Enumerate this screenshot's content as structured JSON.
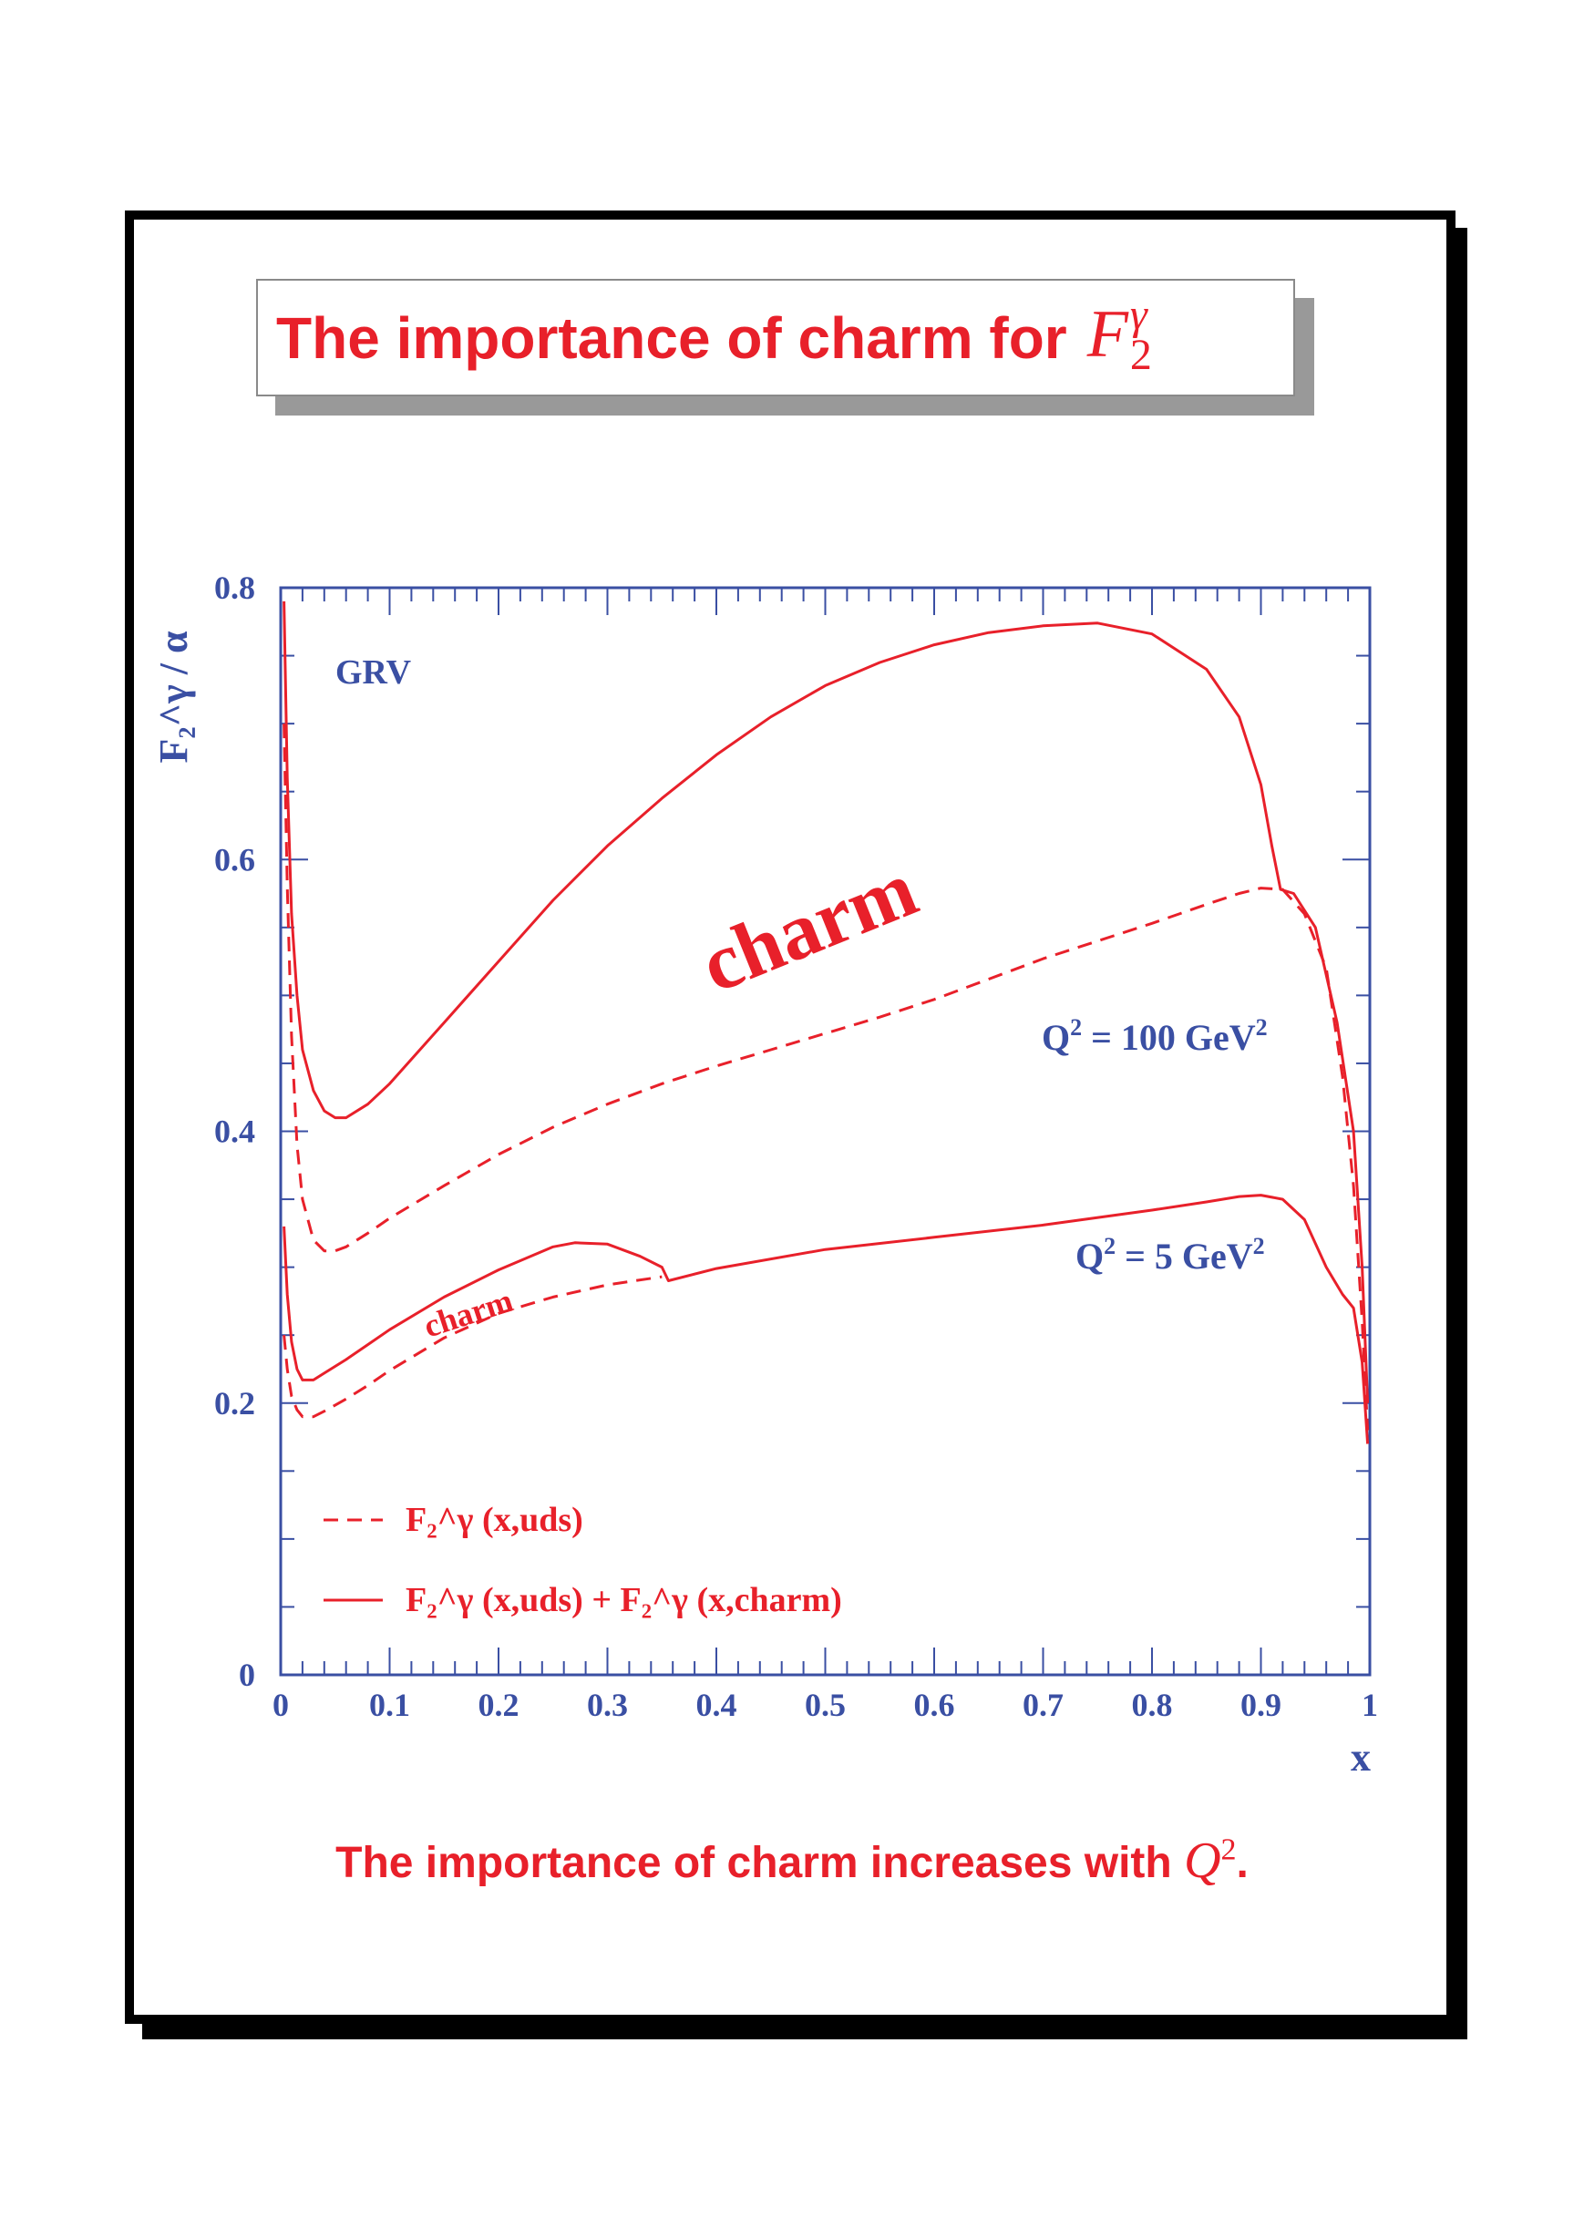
{
  "title": {
    "text": "The importance of charm for",
    "symbol": "F",
    "symbol_sup": "γ",
    "symbol_sub": "2"
  },
  "caption": {
    "text": "The importance of charm increases with",
    "symbol": "Q",
    "symbol_sup": "2",
    "end": "."
  },
  "colors": {
    "curve": "#e8202a",
    "axis": "#3a4fa3",
    "text_blue": "#3a4fa3",
    "frame": "#000000",
    "title_shadow": "#999999"
  },
  "chart_data": {
    "type": "line",
    "xlabel": "x",
    "ylabel": "F₂^γ / α",
    "xlim": [
      0,
      1
    ],
    "ylim": [
      0,
      0.8
    ],
    "xticks": [
      "0",
      "0.1",
      "0.2",
      "0.3",
      "0.4",
      "0.5",
      "0.6",
      "0.7",
      "0.8",
      "0.9",
      "1"
    ],
    "yticks": [
      "0",
      "0.2",
      "0.4",
      "0.6",
      "0.8"
    ],
    "grid": false,
    "annotations": {
      "model": "GRV",
      "charm_large": "charm",
      "charm_small": "charm",
      "q100": {
        "prefix": "Q",
        "sup": "2",
        "mid": " = 100 GeV",
        "sup2": "2"
      },
      "q5": {
        "prefix": "Q",
        "sup": "2",
        "mid": " = 5 GeV",
        "sup2": "2"
      }
    },
    "legend": {
      "placement": "bottom-left",
      "entries": [
        {
          "style": "dashed",
          "label": "F₂^γ (x,uds)"
        },
        {
          "style": "solid",
          "label": "F₂^γ (x,uds) + F₂^γ (x,charm)"
        }
      ]
    },
    "series": [
      {
        "style": "solid",
        "points": [
          [
            0.003,
            0.79
          ],
          [
            0.006,
            0.66
          ],
          [
            0.01,
            0.56
          ],
          [
            0.015,
            0.5
          ],
          [
            0.02,
            0.46
          ],
          [
            0.03,
            0.43
          ],
          [
            0.04,
            0.415
          ],
          [
            0.05,
            0.41
          ],
          [
            0.06,
            0.41
          ],
          [
            0.08,
            0.42
          ],
          [
            0.1,
            0.435
          ],
          [
            0.15,
            0.48
          ],
          [
            0.2,
            0.525
          ],
          [
            0.25,
            0.57
          ],
          [
            0.3,
            0.61
          ],
          [
            0.35,
            0.645
          ],
          [
            0.4,
            0.677
          ],
          [
            0.45,
            0.705
          ],
          [
            0.5,
            0.728
          ],
          [
            0.55,
            0.745
          ],
          [
            0.6,
            0.758
          ],
          [
            0.65,
            0.767
          ],
          [
            0.7,
            0.772
          ],
          [
            0.75,
            0.774
          ],
          [
            0.8,
            0.766
          ],
          [
            0.85,
            0.74
          ],
          [
            0.88,
            0.705
          ],
          [
            0.9,
            0.655
          ],
          [
            0.91,
            0.61
          ],
          [
            0.918,
            0.578
          ],
          [
            0.93,
            0.575
          ],
          [
            0.95,
            0.55
          ],
          [
            0.97,
            0.48
          ],
          [
            0.985,
            0.4
          ],
          [
            0.993,
            0.3
          ],
          [
            0.998,
            0.2
          ]
        ]
      },
      {
        "style": "dashed",
        "points": [
          [
            0.003,
            0.7
          ],
          [
            0.006,
            0.58
          ],
          [
            0.01,
            0.47
          ],
          [
            0.015,
            0.39
          ],
          [
            0.02,
            0.35
          ],
          [
            0.03,
            0.32
          ],
          [
            0.04,
            0.312
          ],
          [
            0.05,
            0.312
          ],
          [
            0.06,
            0.315
          ],
          [
            0.08,
            0.325
          ],
          [
            0.1,
            0.336
          ],
          [
            0.15,
            0.36
          ],
          [
            0.2,
            0.383
          ],
          [
            0.25,
            0.403
          ],
          [
            0.3,
            0.42
          ],
          [
            0.35,
            0.435
          ],
          [
            0.4,
            0.448
          ],
          [
            0.45,
            0.46
          ],
          [
            0.5,
            0.472
          ],
          [
            0.55,
            0.484
          ],
          [
            0.6,
            0.497
          ],
          [
            0.65,
            0.512
          ],
          [
            0.7,
            0.527
          ],
          [
            0.75,
            0.54
          ],
          [
            0.8,
            0.553
          ],
          [
            0.85,
            0.567
          ],
          [
            0.88,
            0.575
          ],
          [
            0.9,
            0.579
          ],
          [
            0.92,
            0.578
          ],
          [
            0.94,
            0.56
          ],
          [
            0.96,
            0.52
          ],
          [
            0.975,
            0.44
          ],
          [
            0.985,
            0.36
          ],
          [
            0.993,
            0.26
          ],
          [
            0.998,
            0.18
          ]
        ]
      },
      {
        "style": "solid",
        "points": [
          [
            0.003,
            0.33
          ],
          [
            0.006,
            0.28
          ],
          [
            0.01,
            0.245
          ],
          [
            0.015,
            0.225
          ],
          [
            0.02,
            0.217
          ],
          [
            0.03,
            0.217
          ],
          [
            0.04,
            0.222
          ],
          [
            0.06,
            0.232
          ],
          [
            0.08,
            0.243
          ],
          [
            0.1,
            0.254
          ],
          [
            0.15,
            0.278
          ],
          [
            0.2,
            0.298
          ],
          [
            0.25,
            0.315
          ],
          [
            0.27,
            0.318
          ],
          [
            0.3,
            0.317
          ],
          [
            0.33,
            0.308
          ],
          [
            0.35,
            0.3
          ],
          [
            0.356,
            0.29
          ],
          [
            0.4,
            0.299
          ],
          [
            0.5,
            0.313
          ],
          [
            0.6,
            0.322
          ],
          [
            0.7,
            0.331
          ],
          [
            0.8,
            0.342
          ],
          [
            0.85,
            0.348
          ],
          [
            0.88,
            0.352
          ],
          [
            0.9,
            0.353
          ],
          [
            0.92,
            0.35
          ],
          [
            0.94,
            0.335
          ],
          [
            0.96,
            0.3
          ],
          [
            0.975,
            0.28
          ],
          [
            0.985,
            0.27
          ],
          [
            0.993,
            0.23
          ],
          [
            0.998,
            0.17
          ]
        ]
      },
      {
        "style": "dashed",
        "points": [
          [
            0.003,
            0.25
          ],
          [
            0.006,
            0.225
          ],
          [
            0.01,
            0.205
          ],
          [
            0.015,
            0.195
          ],
          [
            0.02,
            0.19
          ],
          [
            0.03,
            0.19
          ],
          [
            0.04,
            0.194
          ],
          [
            0.06,
            0.203
          ],
          [
            0.08,
            0.213
          ],
          [
            0.1,
            0.224
          ],
          [
            0.15,
            0.248
          ],
          [
            0.2,
            0.266
          ],
          [
            0.25,
            0.278
          ],
          [
            0.3,
            0.287
          ],
          [
            0.35,
            0.293
          ]
        ]
      }
    ]
  }
}
